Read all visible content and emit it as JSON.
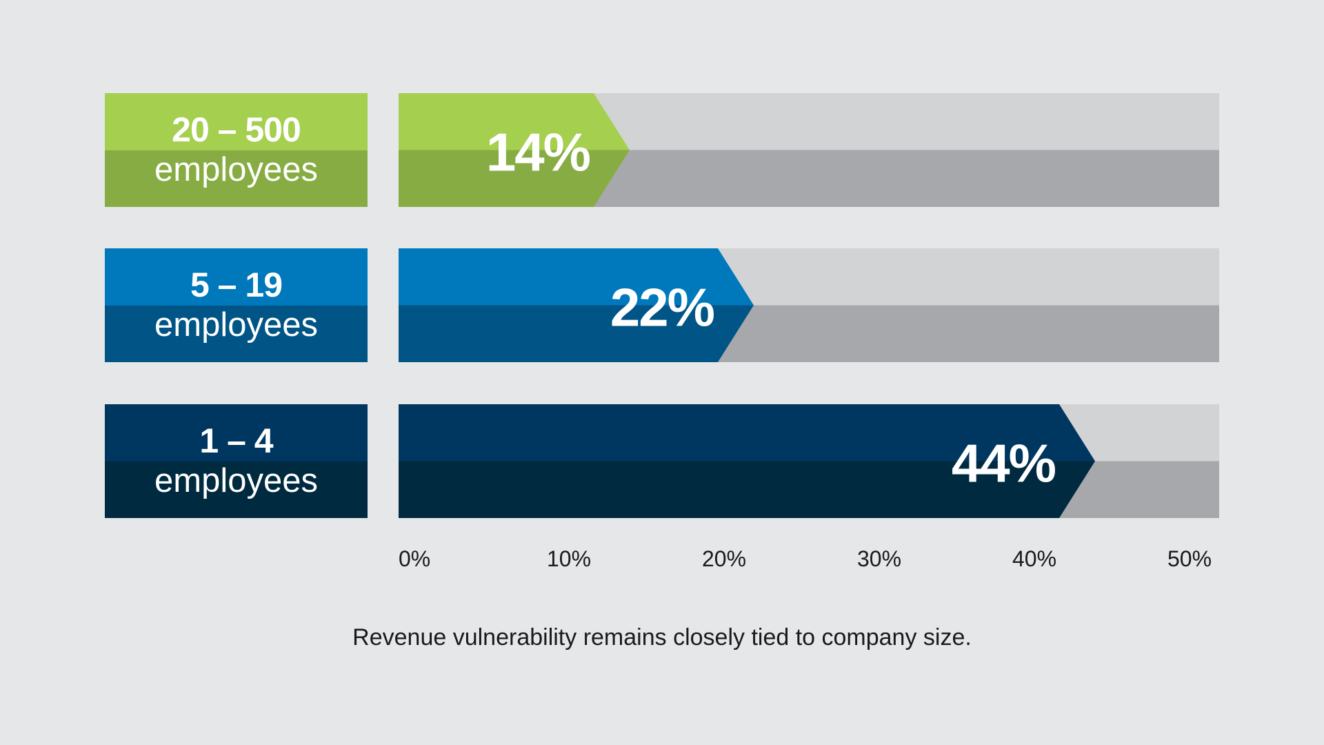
{
  "chart_data": {
    "type": "bar",
    "orientation": "horizontal",
    "categories": [
      {
        "range": "20 – 500",
        "unit": "employees"
      },
      {
        "range": "5 – 19",
        "unit": "employees"
      },
      {
        "range": "1 – 4",
        "unit": "employees"
      }
    ],
    "values": [
      14,
      22,
      44
    ],
    "value_labels": [
      "14%",
      "22%",
      "44%"
    ],
    "xlim": [
      0,
      50
    ],
    "xticks": [
      0,
      10,
      20,
      30,
      40,
      50
    ],
    "xtick_labels": [
      "0%",
      "10%",
      "20%",
      "30%",
      "40%",
      "50%"
    ],
    "caption": "Revenue vulnerability remains closely tied to company size.",
    "grid": false,
    "colors": [
      {
        "light": "#a5cf4f",
        "dark": "#87ac43"
      },
      {
        "light": "#0078bc",
        "dark": "#005586"
      },
      {
        "light": "#003760",
        "dark": "#002a40"
      }
    ],
    "track_colors": {
      "light": "#d2d3d5",
      "dark": "#a7a8ab"
    }
  }
}
